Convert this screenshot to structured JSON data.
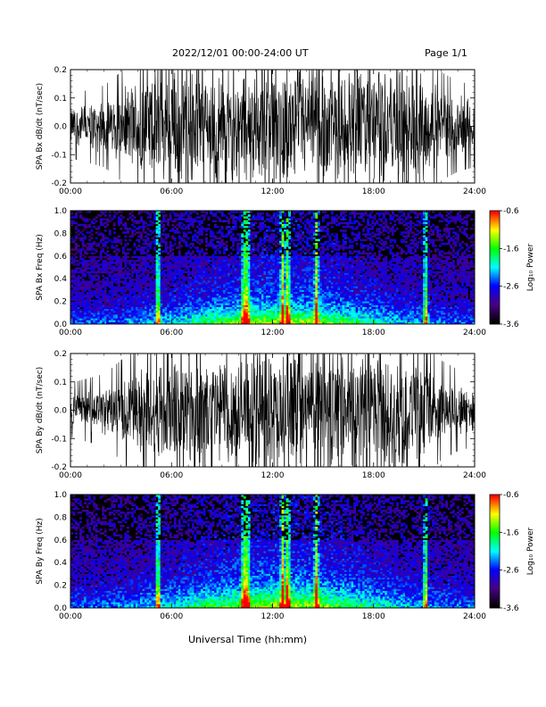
{
  "header": {
    "title": "2022/12/01  00:00-24:00 UT",
    "page": "Page 1/1"
  },
  "x_axis": {
    "label": "Universal Time (hh:mm)",
    "ticks": [
      "00:00",
      "06:00",
      "12:00",
      "18:00",
      "24:00"
    ]
  },
  "colors": {
    "background": "#ffffff",
    "trace": "#000000",
    "colormap": [
      "#000000",
      "#4b0082",
      "#0000ff",
      "#00ffff",
      "#00ff00",
      "#ffff00",
      "#ff0000"
    ]
  },
  "colorbar": {
    "label": "Log₁₀ Power",
    "ticks": [
      "-0.6",
      "-1.6",
      "-2.6",
      "-3.6"
    ],
    "range": [
      -3.6,
      -0.6
    ]
  },
  "chart_data": [
    {
      "type": "line",
      "ylabel": "SPA Bx dB/dt (nT/sec)",
      "xlim": [
        0,
        24
      ],
      "ylim": [
        -0.2,
        0.2
      ],
      "yticks": [
        "0.2",
        "0.1",
        "0.0",
        "-0.1",
        "-0.2"
      ],
      "envelope": {
        "x_hours": [
          0,
          1,
          2,
          3,
          4,
          5,
          6,
          7,
          8,
          9,
          10,
          11,
          12,
          13,
          14,
          15,
          16,
          17,
          18,
          19,
          20,
          21,
          22,
          23,
          24
        ],
        "amplitude": [
          0.07,
          0.08,
          0.09,
          0.12,
          0.17,
          0.2,
          0.2,
          0.2,
          0.2,
          0.2,
          0.2,
          0.2,
          0.2,
          0.2,
          0.2,
          0.2,
          0.2,
          0.2,
          0.2,
          0.2,
          0.2,
          0.17,
          0.12,
          0.1,
          0.09
        ]
      }
    },
    {
      "type": "heatmap",
      "ylabel": "SPA Bx Freq (Hz)",
      "xlim": [
        0,
        24
      ],
      "ylim": [
        0,
        1.0
      ],
      "yticks": [
        "1.0",
        "0.8",
        "0.6",
        "0.4",
        "0.2",
        "0.0"
      ],
      "zrange": [
        -3.6,
        -0.6
      ],
      "bright_lines_hours": [
        5.2,
        10.3,
        10.5,
        12.6,
        12.9,
        14.6,
        21.1
      ],
      "low_freq_enhancement_hz": 0.15
    },
    {
      "type": "line",
      "ylabel": "SPA By dB/dt (nT/sec)",
      "xlim": [
        0,
        24
      ],
      "ylim": [
        -0.2,
        0.2
      ],
      "yticks": [
        "0.2",
        "0.1",
        "0.0",
        "-0.1",
        "-0.2"
      ],
      "envelope": {
        "x_hours": [
          0,
          1,
          2,
          3,
          4,
          5,
          6,
          7,
          8,
          9,
          10,
          11,
          12,
          13,
          14,
          15,
          16,
          17,
          18,
          19,
          20,
          21,
          22,
          23,
          24
        ],
        "amplitude": [
          0.06,
          0.07,
          0.08,
          0.11,
          0.15,
          0.19,
          0.2,
          0.2,
          0.2,
          0.2,
          0.2,
          0.2,
          0.2,
          0.2,
          0.2,
          0.2,
          0.2,
          0.2,
          0.2,
          0.2,
          0.19,
          0.16,
          0.11,
          0.09,
          0.08
        ]
      }
    },
    {
      "type": "heatmap",
      "ylabel": "SPA By Freq (Hz)",
      "xlim": [
        0,
        24
      ],
      "ylim": [
        0,
        1.0
      ],
      "yticks": [
        "1.0",
        "0.8",
        "0.6",
        "0.4",
        "0.2",
        "0.0"
      ],
      "zrange": [
        -3.6,
        -0.6
      ],
      "bright_lines_hours": [
        5.2,
        10.3,
        10.5,
        12.6,
        12.9,
        14.6,
        21.1
      ],
      "low_freq_enhancement_hz": 0.18
    }
  ]
}
